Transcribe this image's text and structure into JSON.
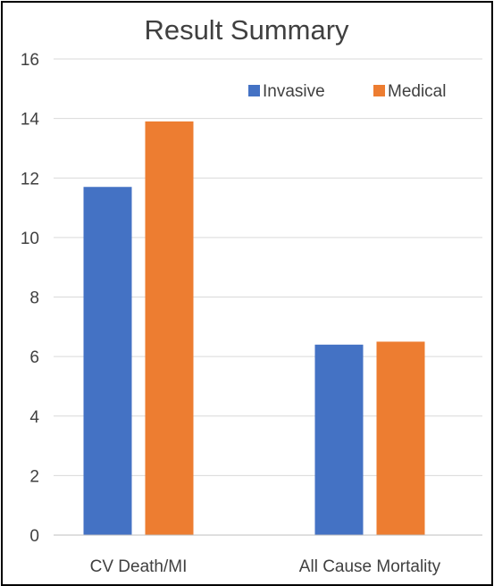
{
  "chart_data": {
    "type": "bar",
    "title": "Result Summary",
    "categories": [
      "CV Death/MI",
      "All Cause Mortality"
    ],
    "series": [
      {
        "name": "Invasive",
        "values": [
          11.7,
          6.4
        ],
        "color": "#4472c4"
      },
      {
        "name": "Medical",
        "values": [
          13.9,
          6.5
        ],
        "color": "#ed7d31"
      }
    ],
    "ylim": [
      0,
      16
    ],
    "yticks": [
      "0",
      "2",
      "4",
      "6",
      "8",
      "10",
      "12",
      "14",
      "16"
    ],
    "grid": true,
    "legend_position": "top-right"
  }
}
